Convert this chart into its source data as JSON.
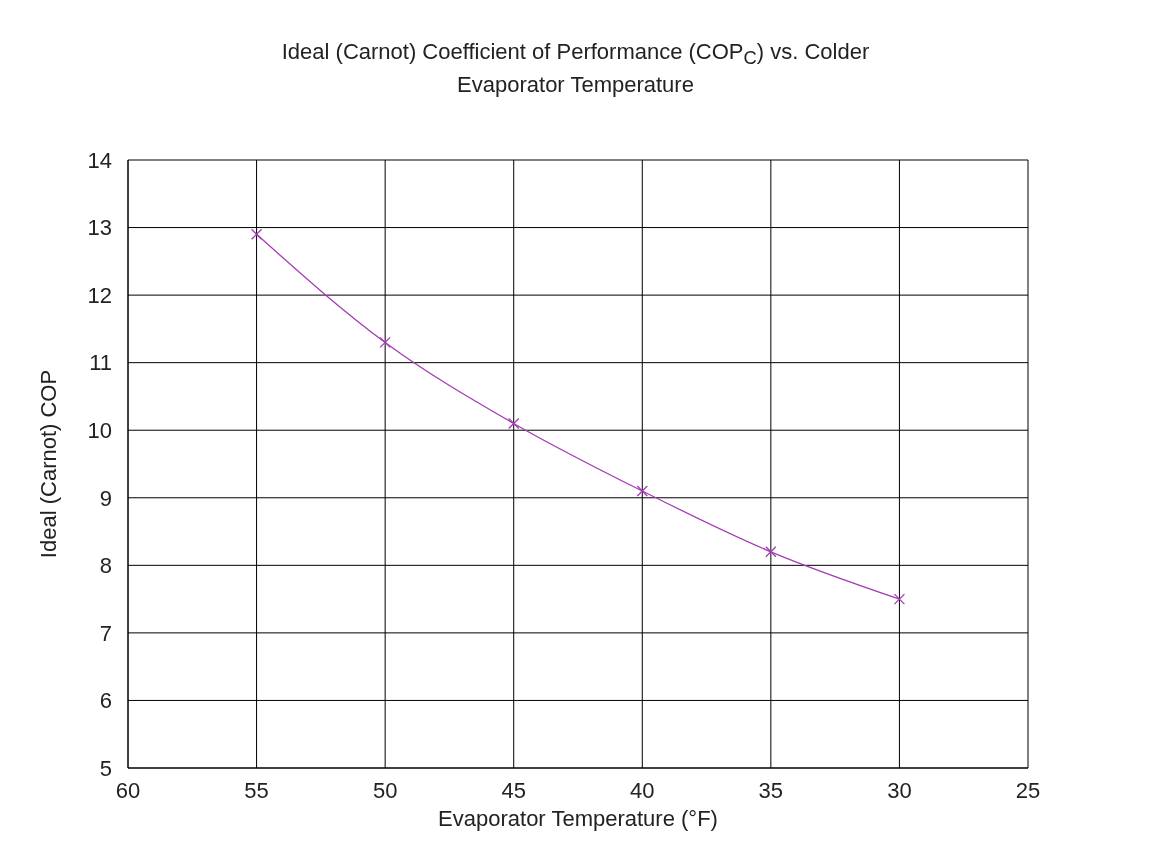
{
  "chart_data": {
    "type": "line",
    "title": "Ideal (Carnot) Coefficient of Performance (COP$_{C}$) vs. Colder Evaporator Temperature",
    "xlabel": "Evaporator Temperature (°F)",
    "ylabel": "Ideal (Carnot) COP",
    "x": [
      55,
      50,
      45,
      40,
      35,
      30
    ],
    "series": [
      {
        "color": "#a43cb4",
        "values": [
          12.9,
          11.3,
          10.1,
          9.1,
          8.2,
          7.5
        ]
      }
    ],
    "xlim": [
      60,
      25
    ],
    "xticks": [
      60,
      55,
      50,
      45,
      40,
      35,
      30,
      25
    ],
    "ylim": [
      5,
      14
    ],
    "yticks": [
      5,
      6,
      7,
      8,
      9,
      10,
      11,
      12,
      13,
      14
    ],
    "grid": true,
    "marker": "cross",
    "line_style": "solid"
  }
}
